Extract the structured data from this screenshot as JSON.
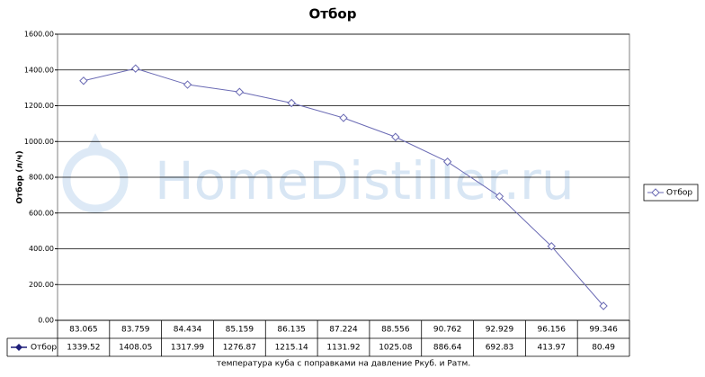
{
  "chart_data": {
    "type": "line",
    "title": "Отбор",
    "y_label": "Отбор (л/ч)",
    "x_label": "температура куба с поправками на давление Ркуб. и Ратм.",
    "watermark": "HomeDistiller.ru",
    "categories": [
      "83.065",
      "83.759",
      "84.434",
      "85.159",
      "86.135",
      "87.224",
      "88.556",
      "90.762",
      "92.929",
      "96.156",
      "99.346"
    ],
    "series": [
      {
        "name": "Отбор",
        "color": "#6a6ab4",
        "values": [
          1339.52,
          1408.05,
          1317.99,
          1276.87,
          1215.14,
          1131.92,
          1025.08,
          886.64,
          692.83,
          413.97,
          80.49
        ]
      }
    ],
    "ylim": [
      0,
      1600
    ],
    "yticks": [
      {
        "value": 0,
        "label": "0.00"
      },
      {
        "value": 200,
        "label": "200.00"
      },
      {
        "value": 400,
        "label": "400.00"
      },
      {
        "value": 600,
        "label": "600.00"
      },
      {
        "value": 800,
        "label": "800.00"
      },
      {
        "value": 1000,
        "label": "1000.00"
      },
      {
        "value": 1200,
        "label": "1200.00"
      },
      {
        "value": 1400,
        "label": "1400.00"
      },
      {
        "value": 1600,
        "label": "1600.00"
      }
    ],
    "grid": true,
    "legend": "right",
    "data_table": true
  }
}
